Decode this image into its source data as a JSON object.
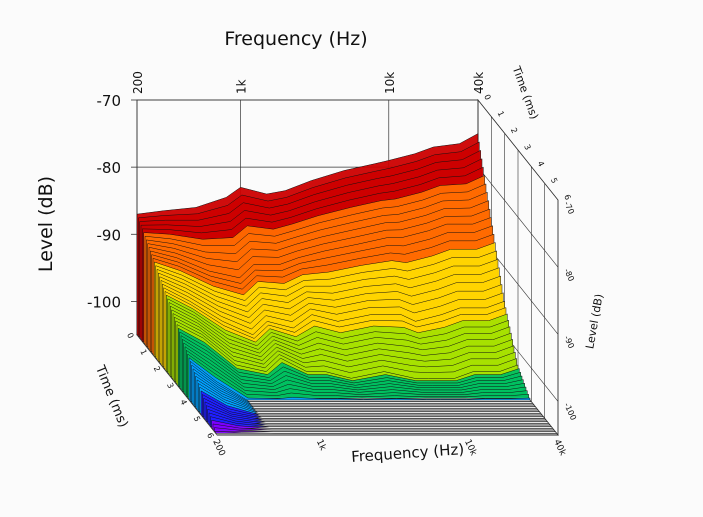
{
  "chart_data": {
    "type": "waterfall-3d",
    "title": "",
    "x_axis": {
      "label": "Frequency (Hz)",
      "scale": "log",
      "range": [
        200,
        40000
      ],
      "tick_labels": [
        "200",
        "1k",
        "10k",
        "40k"
      ],
      "tick_values": [
        200,
        1000,
        10000,
        40000
      ]
    },
    "y_axis": {
      "label": "Level (dB)",
      "range": [
        -105,
        -70
      ],
      "tick_labels": [
        "-70",
        "-80",
        "-90",
        "-100"
      ],
      "tick_values": [
        -70,
        -80,
        -90,
        -100
      ]
    },
    "z_axis": {
      "label": "Time (ms)",
      "range": [
        0,
        6
      ],
      "tick_labels": [
        "0",
        "1",
        "2",
        "3",
        "4",
        "5",
        "6"
      ],
      "tick_values": [
        0,
        1,
        2,
        3,
        4,
        5,
        6
      ]
    },
    "colormap": [
      "#cc0000",
      "#ff6a00",
      "#ffd400",
      "#a6e000",
      "#00c060",
      "#00a0ff",
      "#2020ff",
      "#8000ff"
    ],
    "series": [
      {
        "time_ms": 0.0,
        "freq_hz": [
          200,
          300,
          500,
          800,
          1000,
          1500,
          2000,
          3000,
          5000,
          8000,
          10000,
          15000,
          20000,
          30000,
          40000
        ],
        "level_db": [
          -87,
          -86.5,
          -86,
          -84.5,
          -83,
          -84,
          -83.5,
          -82,
          -80.5,
          -79.5,
          -79,
          -78,
          -77,
          -76.5,
          -75
        ]
      },
      {
        "time_ms": 1.0,
        "freq_hz": [
          200,
          300,
          500,
          800,
          1000,
          1500,
          2000,
          3000,
          5000,
          8000,
          10000,
          15000,
          20000,
          30000,
          40000
        ],
        "level_db": [
          -90,
          -91,
          -93,
          -94,
          -92,
          -92,
          -91,
          -90,
          -89,
          -88,
          -88,
          -87,
          -86,
          -86,
          -85
        ]
      },
      {
        "time_ms": 2.0,
        "freq_hz": [
          200,
          300,
          500,
          800,
          1000,
          1500,
          2000,
          3000,
          5000,
          8000,
          10000,
          15000,
          20000,
          30000,
          40000
        ],
        "level_db": [
          -93,
          -95,
          -98,
          -100,
          -98,
          -99,
          -97,
          -98,
          -97,
          -97,
          -98,
          -97,
          -96,
          -96,
          -95
        ]
      },
      {
        "time_ms": 3.0,
        "freq_hz": [
          200,
          300,
          500,
          800,
          1000,
          1500,
          2000,
          3000,
          5000,
          8000,
          10000,
          15000,
          20000,
          30000,
          40000
        ],
        "level_db": [
          -96,
          -98,
          -102,
          -103,
          -101,
          -103,
          -103,
          -104,
          -103,
          -104,
          -104,
          -104,
          -103,
          -103,
          -102
        ]
      },
      {
        "time_ms": 4.0,
        "freq_hz": [
          200,
          300,
          500,
          800,
          1000,
          1500,
          2000,
          3000,
          5000,
          8000,
          10000,
          15000,
          20000,
          30000,
          40000
        ],
        "level_db": [
          -99,
          -102,
          -105,
          -105,
          -105,
          -105,
          -105,
          -105,
          -105,
          -105,
          -105,
          -105,
          -105,
          -105,
          -105
        ]
      },
      {
        "time_ms": 5.0,
        "freq_hz": [
          200,
          300,
          500,
          800,
          1000,
          1500,
          2000,
          3000,
          5000,
          8000,
          10000,
          15000,
          20000,
          30000,
          40000
        ],
        "level_db": [
          -102,
          -104,
          -105,
          -105,
          -105,
          -105,
          -105,
          -105,
          -105,
          -105,
          -105,
          -105,
          -105,
          -105,
          -105
        ]
      },
      {
        "time_ms": 6.0,
        "freq_hz": [
          200,
          300,
          500,
          800,
          1000,
          1500,
          2000,
          3000,
          5000,
          8000,
          10000,
          15000,
          20000,
          30000,
          40000
        ],
        "level_db": [
          -105,
          -105,
          -105,
          -105,
          -105,
          -105,
          -105,
          -105,
          -105,
          -105,
          -105,
          -105,
          -105,
          -105,
          -105
        ]
      }
    ],
    "grid": true,
    "legend": "none"
  }
}
